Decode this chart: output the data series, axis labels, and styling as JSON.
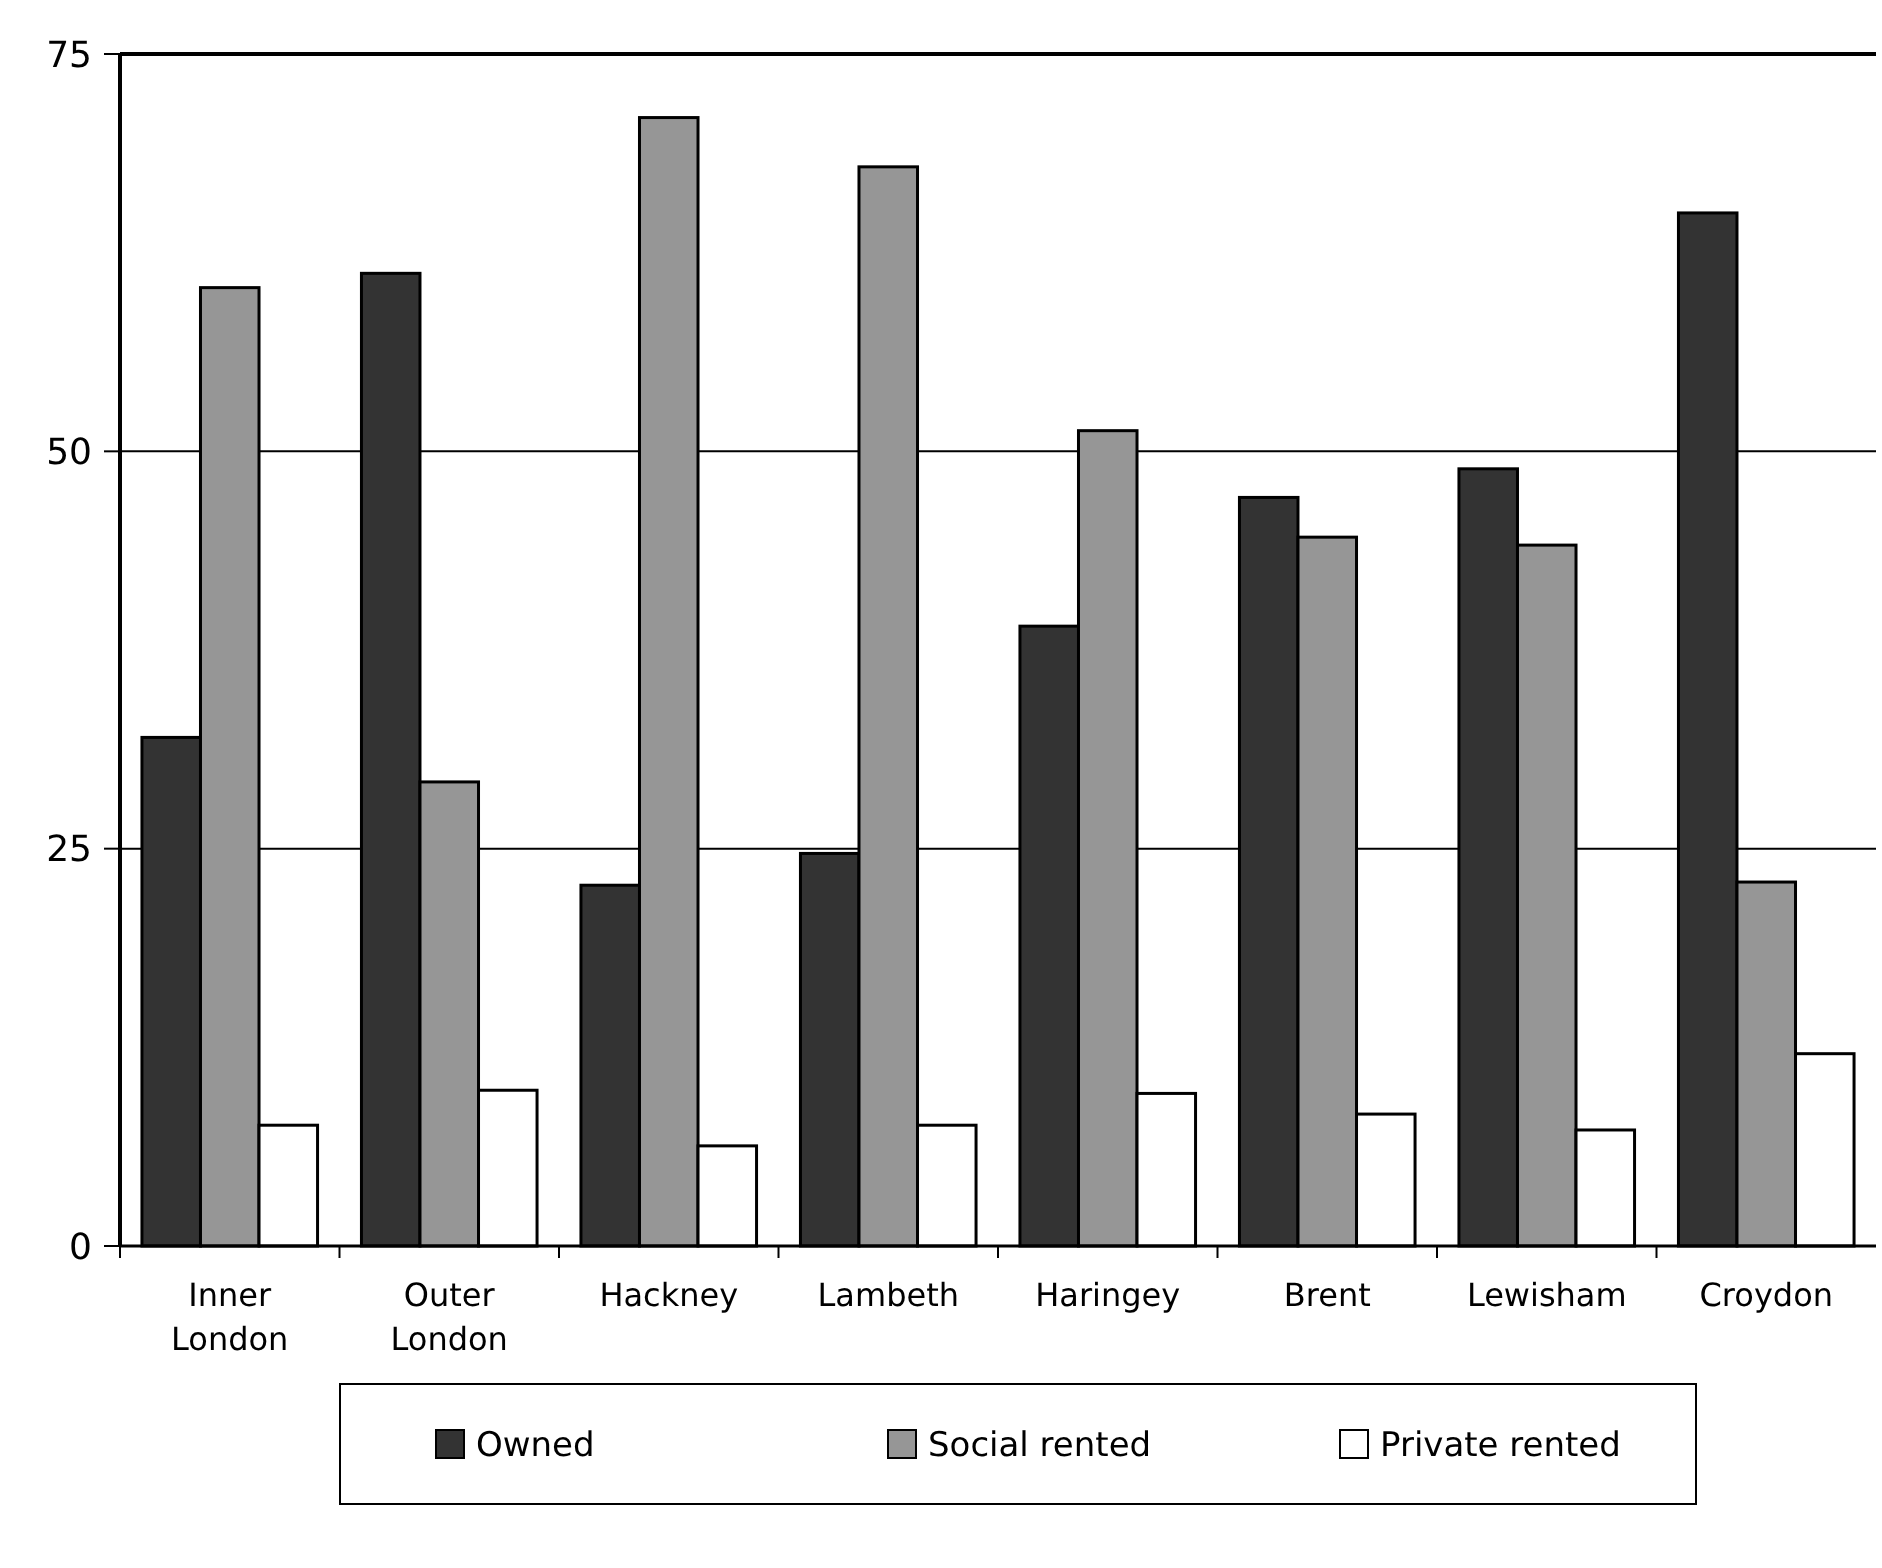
{
  "chart_data": {
    "type": "bar",
    "categories": [
      "Inner\nLondon",
      "Outer\nLondon",
      "Hackney",
      "Lambeth",
      "Haringey",
      "Brent",
      "Lewisham",
      "Croydon"
    ],
    "series": [
      {
        "name": "Owned",
        "color": "#333333",
        "values": [
          32.0,
          61.2,
          22.7,
          24.7,
          39.0,
          47.1,
          48.9,
          65.0
        ]
      },
      {
        "name": "Social rented",
        "color": "#969696",
        "values": [
          60.3,
          29.2,
          71.0,
          67.9,
          51.3,
          44.6,
          44.1,
          22.9
        ]
      },
      {
        "name": "Private rented",
        "color": "#ffffff",
        "values": [
          7.6,
          9.8,
          6.3,
          7.6,
          9.6,
          8.3,
          7.3,
          12.1
        ]
      }
    ],
    "ylim": [
      0,
      75
    ],
    "yticks": [
      0,
      25,
      50,
      75
    ],
    "grid": "y",
    "legend": "bottom"
  }
}
